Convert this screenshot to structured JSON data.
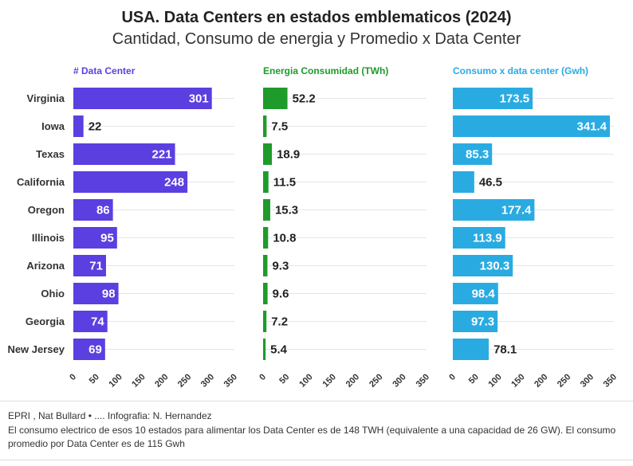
{
  "title": "USA. Data Centers en estados emblematicos (2024)",
  "subtitle": "Cantidad, Consumo de energia y Promedio x Data Center",
  "footer": {
    "source": "EPRI , Nat Bullard • .... Infografia: N. Hernandez",
    "note": "El consumo electrico de esos 10 estados para alimentar los Data Center es de 148 TWH (equivalente a una capacidad de 26 GW). El consumo promedio por Data Center es de 115 Gwh"
  },
  "chart_data": {
    "type": "bar",
    "orientation": "horizontal",
    "categories": [
      "Virginia",
      "Iowa",
      "Texas",
      "California",
      "Oregon",
      "Illinois",
      "Arizona",
      "Ohio",
      "Georgia",
      "New Jersey"
    ],
    "series": [
      {
        "name": "# Data Center",
        "color": "#5b3fe0",
        "values": [
          301,
          22,
          221,
          248,
          86,
          95,
          71,
          98,
          74,
          69
        ],
        "labels": [
          "301",
          "22",
          "221",
          "248",
          "86",
          "95",
          "71",
          "98",
          "74",
          "69"
        ],
        "xlim": [
          0,
          350
        ],
        "ticks": [
          0,
          50,
          100,
          150,
          200,
          250,
          300,
          350
        ]
      },
      {
        "name": "Energia Consumidad (TWh)",
        "color": "#1e9b2a",
        "values": [
          52.2,
          7.5,
          18.9,
          11.5,
          15.3,
          10.8,
          9.3,
          9.6,
          7.2,
          5.4
        ],
        "labels": [
          "52.2",
          "7.5",
          "18.9",
          "11.5",
          "15.3",
          "10.8",
          "9.3",
          "9.6",
          "7.2",
          "5.4"
        ],
        "xlim": [
          0,
          350
        ],
        "ticks": [
          0,
          50,
          100,
          150,
          200,
          250,
          300,
          350
        ]
      },
      {
        "name": "Consumo x data center (Gwh)",
        "color": "#29abe2",
        "values": [
          173.5,
          341.4,
          85.3,
          46.5,
          177.4,
          113.9,
          130.3,
          98.4,
          97.3,
          78.1
        ],
        "labels": [
          "173.5",
          "341.4",
          "85.3",
          "46.5",
          "177.4",
          "113.9",
          "130.3",
          "98.4",
          "97.3",
          "78.1"
        ],
        "xlim": [
          0,
          350
        ],
        "ticks": [
          0,
          50,
          100,
          150,
          200,
          250,
          300,
          350
        ]
      }
    ]
  }
}
